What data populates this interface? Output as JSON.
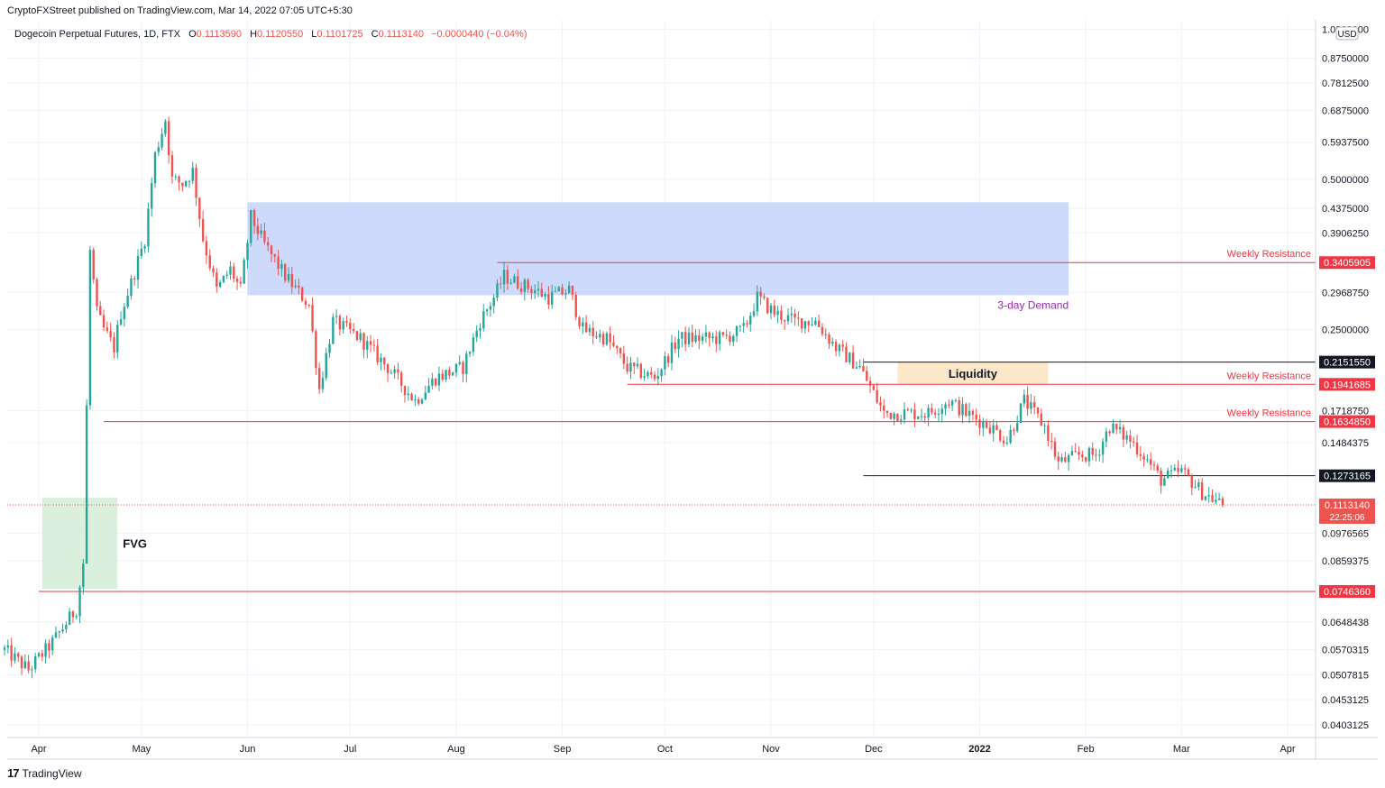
{
  "header": {
    "published": "CryptoFXStreet published on TradingView.com, Mar 14, 2022 07:05 UTC+5:30"
  },
  "legend": {
    "symbol": "Dogecoin Perpetual Futures, 1D, FTX",
    "o_label": "O",
    "o_value": "0.1113590",
    "h_label": "H",
    "h_value": "0.1120550",
    "l_label": "L",
    "l_value": "0.1101725",
    "c_label": "C",
    "c_value": "0.1113140",
    "change": "−0.0000440 (−0.04%)"
  },
  "footer": {
    "brand": "TradingView"
  },
  "colors": {
    "up": "#26a69a",
    "down": "#ef5350",
    "demand_zone": "#c5d3fb",
    "fvg_zone": "#d4ecd6",
    "liquidity_zone": "#fde3bf",
    "resistance_line": "#f23645",
    "black_line": "#131722",
    "demand_label": "#9c27b0"
  },
  "chart_data": {
    "type": "candlestick",
    "title": "",
    "currency": "USD",
    "y_scale": "log",
    "ylim": [
      0.037,
      1.0
    ],
    "x_ticks": [
      "Apr",
      "May",
      "Jun",
      "Jul",
      "Aug",
      "Sep",
      "Oct",
      "Nov",
      "Dec",
      "2022",
      "Feb",
      "Mar",
      "Apr"
    ],
    "y_ticks": [
      "1.0000000",
      "0.8750000",
      "0.7812500",
      "0.6875000",
      "0.5937500",
      "0.5000000",
      "0.4375000",
      "0.3906250",
      "0.2968750",
      "0.2500000",
      "0.1718750",
      "0.1484375",
      "0.0976565",
      "0.0859375",
      "0.0648438",
      "0.0570315",
      "0.0507815",
      "0.0453125",
      "0.0403125"
    ],
    "price_labels": [
      {
        "value": "0.3405905",
        "price": 0.3405905,
        "style": "red"
      },
      {
        "value": "0.2151550",
        "price": 0.215155,
        "style": "black"
      },
      {
        "value": "0.1941685",
        "price": 0.1941685,
        "style": "red"
      },
      {
        "value": "0.1634850",
        "price": 0.163485,
        "style": "red"
      },
      {
        "value": "0.1273165",
        "price": 0.1273165,
        "style": "black"
      },
      {
        "value": "0.0746360",
        "price": 0.074636,
        "style": "red"
      }
    ],
    "last_price": {
      "value": "0.1113140",
      "price": 0.111314,
      "countdown": "22:25:06"
    },
    "levels": [
      {
        "price": 0.3405905,
        "from": "2021-08-13",
        "style": "red",
        "label": "Weekly Resistance"
      },
      {
        "price": 0.215155,
        "from": "2021-11-28",
        "style": "black",
        "label": ""
      },
      {
        "price": 0.1941685,
        "from": "2021-09-20",
        "style": "red",
        "label": "Weekly Resistance"
      },
      {
        "price": 0.163485,
        "from": "2021-04-20",
        "style": "red",
        "label": "Weekly Resistance"
      },
      {
        "price": 0.1273165,
        "from": "2021-11-28",
        "style": "black",
        "label": ""
      },
      {
        "price": 0.074636,
        "from": "2021-04-01",
        "style": "red",
        "label": ""
      }
    ],
    "zones": [
      {
        "name": "3-day Demand",
        "label": "3-day Demand",
        "start": "2021-06-01",
        "end": "2022-01-27",
        "low": 0.293,
        "high": 0.45,
        "color": "demand"
      },
      {
        "name": "FVG",
        "label": "FVG",
        "start": "2021-04-02",
        "end": "2021-04-24",
        "low": 0.0755,
        "high": 0.115,
        "color": "fvg"
      },
      {
        "name": "Liquidity",
        "label": "Liquidity",
        "start": "2021-12-08",
        "end": "2022-01-21",
        "low": 0.1941685,
        "high": 0.215155,
        "color": "liquidity"
      }
    ],
    "anchors": [
      {
        "date": "2021-03-22",
        "price": 0.057
      },
      {
        "date": "2021-03-29",
        "price": 0.052
      },
      {
        "date": "2021-04-05",
        "price": 0.059
      },
      {
        "date": "2021-04-12",
        "price": 0.069
      },
      {
        "date": "2021-04-14",
        "price": 0.085
      },
      {
        "date": "2021-04-16",
        "price": 0.36
      },
      {
        "date": "2021-04-18",
        "price": 0.27
      },
      {
        "date": "2021-04-20",
        "price": 0.25
      },
      {
        "date": "2021-04-23",
        "price": 0.23
      },
      {
        "date": "2021-04-25",
        "price": 0.27
      },
      {
        "date": "2021-04-28",
        "price": 0.31
      },
      {
        "date": "2021-05-02",
        "price": 0.38
      },
      {
        "date": "2021-05-05",
        "price": 0.56
      },
      {
        "date": "2021-05-08",
        "price": 0.66
      },
      {
        "date": "2021-05-10",
        "price": 0.5
      },
      {
        "date": "2021-05-13",
        "price": 0.49
      },
      {
        "date": "2021-05-16",
        "price": 0.52
      },
      {
        "date": "2021-05-19",
        "price": 0.38
      },
      {
        "date": "2021-05-23",
        "price": 0.3
      },
      {
        "date": "2021-05-27",
        "price": 0.33
      },
      {
        "date": "2021-05-30",
        "price": 0.3
      },
      {
        "date": "2021-06-02",
        "price": 0.42
      },
      {
        "date": "2021-06-06",
        "price": 0.37
      },
      {
        "date": "2021-06-12",
        "price": 0.32
      },
      {
        "date": "2021-06-19",
        "price": 0.28
      },
      {
        "date": "2021-06-22",
        "price": 0.19
      },
      {
        "date": "2021-06-26",
        "price": 0.26
      },
      {
        "date": "2021-07-04",
        "price": 0.24
      },
      {
        "date": "2021-07-12",
        "price": 0.21
      },
      {
        "date": "2021-07-20",
        "price": 0.18
      },
      {
        "date": "2021-07-26",
        "price": 0.2
      },
      {
        "date": "2021-08-03",
        "price": 0.21
      },
      {
        "date": "2021-08-08",
        "price": 0.26
      },
      {
        "date": "2021-08-12",
        "price": 0.29
      },
      {
        "date": "2021-08-15",
        "price": 0.32
      },
      {
        "date": "2021-08-19",
        "price": 0.31
      },
      {
        "date": "2021-08-24",
        "price": 0.3
      },
      {
        "date": "2021-08-28",
        "price": 0.29
      },
      {
        "date": "2021-09-03",
        "price": 0.3
      },
      {
        "date": "2021-09-07",
        "price": 0.25
      },
      {
        "date": "2021-09-14",
        "price": 0.24
      },
      {
        "date": "2021-09-20",
        "price": 0.21
      },
      {
        "date": "2021-09-28",
        "price": 0.2
      },
      {
        "date": "2021-10-05",
        "price": 0.24
      },
      {
        "date": "2021-10-12",
        "price": 0.24
      },
      {
        "date": "2021-10-18",
        "price": 0.24
      },
      {
        "date": "2021-10-24",
        "price": 0.25
      },
      {
        "date": "2021-10-28",
        "price": 0.29
      },
      {
        "date": "2021-11-02",
        "price": 0.27
      },
      {
        "date": "2021-11-08",
        "price": 0.26
      },
      {
        "date": "2021-11-14",
        "price": 0.26
      },
      {
        "date": "2021-11-20",
        "price": 0.23
      },
      {
        "date": "2021-11-27",
        "price": 0.21
      },
      {
        "date": "2021-12-04",
        "price": 0.17
      },
      {
        "date": "2021-12-10",
        "price": 0.17
      },
      {
        "date": "2021-12-17",
        "price": 0.17
      },
      {
        "date": "2021-12-23",
        "price": 0.18
      },
      {
        "date": "2021-12-28",
        "price": 0.17
      },
      {
        "date": "2022-01-04",
        "price": 0.16
      },
      {
        "date": "2022-01-09",
        "price": 0.15
      },
      {
        "date": "2022-01-14",
        "price": 0.18
      },
      {
        "date": "2022-01-20",
        "price": 0.16
      },
      {
        "date": "2022-01-24",
        "price": 0.135
      },
      {
        "date": "2022-01-30",
        "price": 0.14
      },
      {
        "date": "2022-02-04",
        "price": 0.14
      },
      {
        "date": "2022-02-08",
        "price": 0.16
      },
      {
        "date": "2022-02-14",
        "price": 0.15
      },
      {
        "date": "2022-02-18",
        "price": 0.14
      },
      {
        "date": "2022-02-23",
        "price": 0.125
      },
      {
        "date": "2022-03-01",
        "price": 0.13
      },
      {
        "date": "2022-03-07",
        "price": 0.118
      },
      {
        "date": "2022-03-13",
        "price": 0.1113
      }
    ]
  }
}
